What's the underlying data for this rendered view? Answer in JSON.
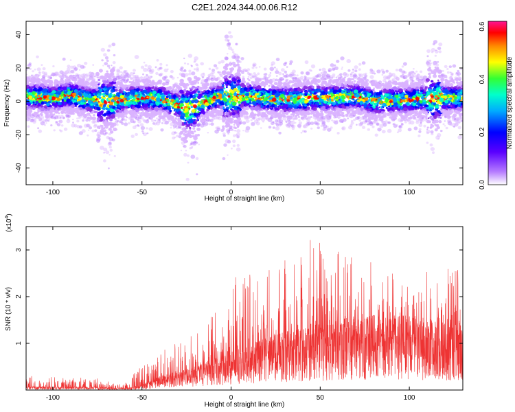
{
  "title": "C2E1.2024.344.00.06.R12",
  "chart_data": [
    {
      "type": "heatmap",
      "xlabel": "Height of straight line (km)",
      "ylabel": "Frequency (Hz)",
      "xlim": [
        -115,
        130
      ],
      "ylim": [
        -50,
        48
      ],
      "xticks": [
        -100,
        -50,
        0,
        50,
        100
      ],
      "yticks": [
        -40,
        -20,
        0,
        20,
        40
      ],
      "colorbar": {
        "label": "Normalized spectral amplitude",
        "range": [
          0.0,
          0.62
        ],
        "ticks": [
          0.0,
          0.2,
          0.4,
          0.6
        ],
        "tick_labels": [
          "0.0",
          "0.2",
          "0.4",
          "0.6"
        ],
        "colormap": [
          "#ffffff",
          "#8a2be2",
          "#0000ff",
          "#00c8ff",
          "#00ff80",
          "#ffff00",
          "#ff8000",
          "#ff0000",
          "#ff1493"
        ]
      },
      "band_center_hz": [
        {
          "x": -115,
          "y": 3
        },
        {
          "x": -100,
          "y": 2
        },
        {
          "x": -90,
          "y": 4
        },
        {
          "x": -80,
          "y": 1
        },
        {
          "x": -70,
          "y": 0
        },
        {
          "x": -60,
          "y": 1
        },
        {
          "x": -50,
          "y": 2
        },
        {
          "x": -40,
          "y": 2
        },
        {
          "x": -30,
          "y": -2
        },
        {
          "x": -25,
          "y": -5
        },
        {
          "x": -20,
          "y": -3
        },
        {
          "x": -10,
          "y": 2
        },
        {
          "x": 0,
          "y": 3
        },
        {
          "x": 10,
          "y": 3
        },
        {
          "x": 25,
          "y": 1
        },
        {
          "x": 50,
          "y": 2
        },
        {
          "x": 70,
          "y": 3
        },
        {
          "x": 80,
          "y": 0
        },
        {
          "x": 100,
          "y": 1
        },
        {
          "x": 115,
          "y": 2
        },
        {
          "x": 130,
          "y": 2
        }
      ],
      "grid": false
    },
    {
      "type": "line",
      "xlabel": "Height of straight line (km)",
      "ylabel": "SNR (10 * v/v)",
      "yscale_label": "(x10",
      "yscale_exp": "4",
      "yscale_close": ")",
      "xlim": [
        -115,
        130
      ],
      "ylim": [
        0,
        3.5
      ],
      "xticks": [
        -100,
        -50,
        0,
        50,
        100
      ],
      "yticks": [
        1,
        2,
        3
      ],
      "color": "#ee3333",
      "envelope": [
        {
          "x": -115,
          "base": 0.05,
          "peak": 0.3
        },
        {
          "x": -80,
          "base": 0.05,
          "peak": 0.3
        },
        {
          "x": -60,
          "base": 0.03,
          "peak": 0.12
        },
        {
          "x": -52,
          "base": 0.05,
          "peak": 0.5
        },
        {
          "x": -40,
          "base": 0.2,
          "peak": 0.8
        },
        {
          "x": -25,
          "base": 0.3,
          "peak": 1.2
        },
        {
          "x": -10,
          "base": 0.45,
          "peak": 1.6
        },
        {
          "x": 0,
          "base": 0.55,
          "peak": 2.4
        },
        {
          "x": 20,
          "base": 0.75,
          "peak": 2.6
        },
        {
          "x": 45,
          "base": 0.95,
          "peak": 3.3
        },
        {
          "x": 70,
          "base": 1.05,
          "peak": 2.8
        },
        {
          "x": 100,
          "base": 1.1,
          "peak": 2.6
        },
        {
          "x": 130,
          "base": 1.0,
          "peak": 2.6
        }
      ],
      "grid": false
    }
  ]
}
